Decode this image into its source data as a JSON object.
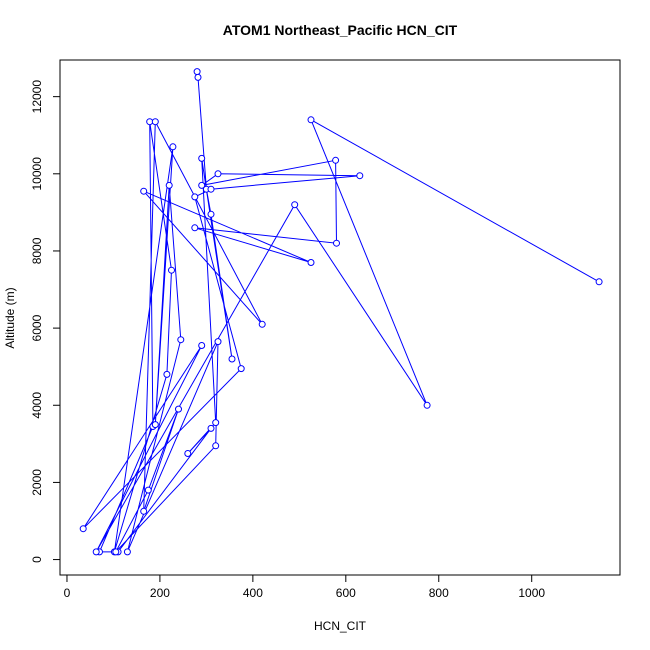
{
  "chart_data": {
    "type": "line",
    "title": "ATOM1 Northeast_Pacific HCN_CIT",
    "xlabel": "HCN_CIT",
    "ylabel": "Altitude (m)",
    "xlim": [
      -15,
      1190
    ],
    "ylim": [
      -400,
      12950
    ],
    "x_ticks": [
      0,
      200,
      400,
      600,
      800,
      1000
    ],
    "y_ticks": [
      0,
      2000,
      4000,
      6000,
      8000,
      10000,
      12000
    ],
    "grid": false,
    "legend": "none",
    "series_color": "#0000ff",
    "series": [
      {
        "points": [
          [
            280,
            12650
          ],
          [
            282,
            12500
          ],
          [
            300,
            9600
          ],
          [
            310,
            8950
          ],
          [
            355,
            5200
          ],
          [
            290,
            10400
          ],
          [
            320,
            3550
          ],
          [
            260,
            2750
          ],
          [
            310,
            3400
          ],
          [
            110,
            200
          ],
          [
            70,
            200
          ],
          [
            185,
            3450
          ],
          [
            178,
            11350
          ],
          [
            225,
            7500
          ],
          [
            215,
            4800
          ],
          [
            102,
            200
          ],
          [
            228,
            10700
          ],
          [
            190,
            3500
          ],
          [
            220,
            9700
          ],
          [
            245,
            5700
          ],
          [
            130,
            200
          ],
          [
            325,
            5650
          ],
          [
            320,
            2950
          ],
          [
            105,
            200
          ],
          [
            175,
            1800
          ],
          [
            240,
            3900
          ],
          [
            165,
            1250
          ],
          [
            190,
            11350
          ],
          [
            420,
            6100
          ],
          [
            165,
            9550
          ],
          [
            525,
            7700
          ],
          [
            275,
            8600
          ],
          [
            580,
            8200
          ],
          [
            578,
            10350
          ],
          [
            290,
            9700
          ],
          [
            325,
            10000
          ],
          [
            630,
            9950
          ],
          [
            310,
            9600
          ],
          [
            275,
            9400
          ],
          [
            375,
            4950
          ],
          [
            35,
            800
          ],
          [
            290,
            5550
          ],
          [
            63,
            200
          ],
          [
            490,
            9200
          ],
          [
            775,
            4000
          ],
          [
            525,
            11400
          ],
          [
            1145,
            7200
          ]
        ]
      }
    ]
  }
}
